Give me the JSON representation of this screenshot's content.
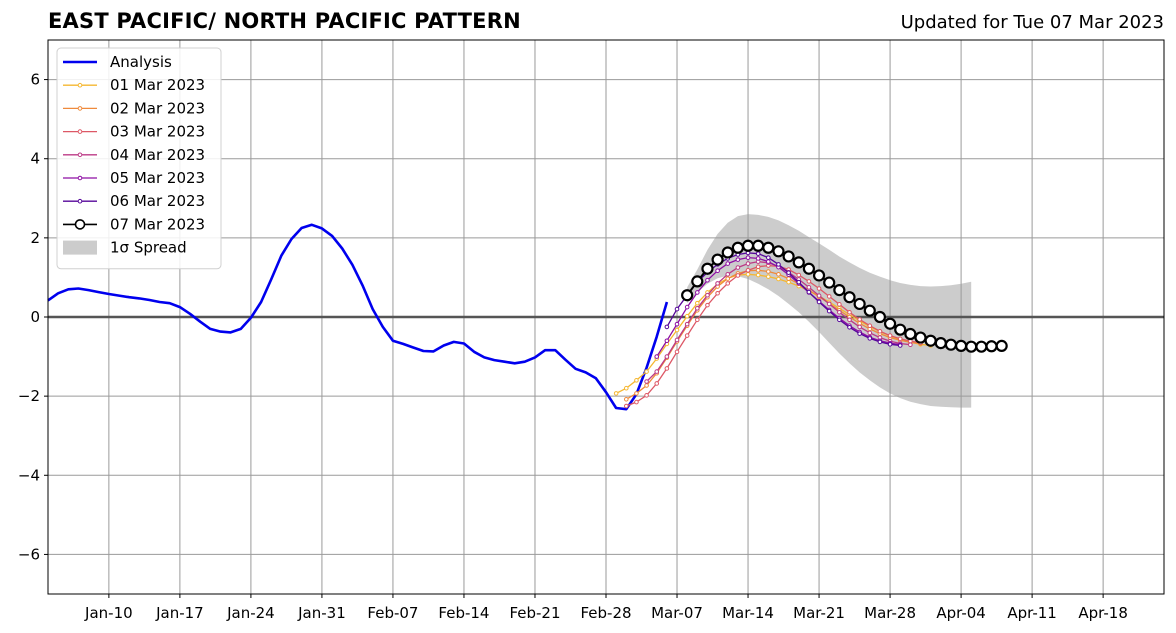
{
  "title": "EAST PACIFIC/ NORTH PACIFIC PATTERN",
  "updated": "Updated for Tue 07 Mar 2023",
  "colors": {
    "analysis": "#0000ee",
    "spread": "#cccccc",
    "grid": "#9a9a9a",
    "forecasts": [
      "#f5b731",
      "#ef8a3c",
      "#dd5866",
      "#bc3a86",
      "#8e0fa4",
      "#55069a",
      "#000000"
    ]
  },
  "chart_data": {
    "type": "line",
    "title": "EAST PACIFIC/ NORTH PACIFIC PATTERN",
    "xlim": [
      "2023-01-04",
      "2023-04-24"
    ],
    "ylim": [
      -7,
      7
    ],
    "xticks": [
      {
        "date": "2023-01-10",
        "label": "Jan-10"
      },
      {
        "date": "2023-01-17",
        "label": "Jan-17"
      },
      {
        "date": "2023-01-24",
        "label": "Jan-24"
      },
      {
        "date": "2023-01-31",
        "label": "Jan-31"
      },
      {
        "date": "2023-02-07",
        "label": "Feb-07"
      },
      {
        "date": "2023-02-14",
        "label": "Feb-14"
      },
      {
        "date": "2023-02-21",
        "label": "Feb-21"
      },
      {
        "date": "2023-02-28",
        "label": "Feb-28"
      },
      {
        "date": "2023-03-07",
        "label": "Mar-07"
      },
      {
        "date": "2023-03-14",
        "label": "Mar-14"
      },
      {
        "date": "2023-03-21",
        "label": "Mar-21"
      },
      {
        "date": "2023-03-28",
        "label": "Mar-28"
      },
      {
        "date": "2023-04-04",
        "label": "Apr-04"
      },
      {
        "date": "2023-04-11",
        "label": "Apr-11"
      },
      {
        "date": "2023-04-18",
        "label": "Apr-18"
      }
    ],
    "yticks": [
      {
        "value": -6,
        "label": "−6"
      },
      {
        "value": -4,
        "label": "−4"
      },
      {
        "value": -2,
        "label": "−2"
      },
      {
        "value": 0,
        "label": "0"
      },
      {
        "value": 2,
        "label": "2"
      },
      {
        "value": 4,
        "label": "4"
      },
      {
        "value": 6,
        "label": "6"
      }
    ],
    "grid": true,
    "legend_position": "upper-left",
    "analysis": {
      "name": "Analysis",
      "start": "2023-01-04",
      "values": [
        0.42,
        0.6,
        0.7,
        0.72,
        0.68,
        0.63,
        0.58,
        0.54,
        0.5,
        0.47,
        0.43,
        0.38,
        0.35,
        0.25,
        0.08,
        -0.12,
        -0.3,
        -0.37,
        -0.39,
        -0.3,
        -0.02,
        0.38,
        0.95,
        1.55,
        1.97,
        2.25,
        2.33,
        2.24,
        2.05,
        1.73,
        1.32,
        0.8,
        0.2,
        -0.25,
        -0.6,
        -0.68,
        -0.77,
        -0.86,
        -0.87,
        -0.72,
        -0.63,
        -0.67,
        -0.88,
        -1.02,
        -1.09,
        -1.13,
        -1.17,
        -1.13,
        -1.02,
        -0.84,
        -0.84,
        -1.08,
        -1.31,
        -1.4,
        -1.55,
        -1.9,
        -2.3,
        -2.33,
        -1.95,
        -1.28,
        -0.5,
        0.38
      ]
    },
    "forecasts": [
      {
        "name": "01 Mar 2023",
        "start": "2023-03-01",
        "values": [
          -1.93,
          -1.8,
          -1.6,
          -1.38,
          -1.05,
          -0.68,
          -0.33,
          0.02,
          0.35,
          0.62,
          0.83,
          0.98,
          1.06,
          1.08,
          1.06,
          1.02,
          0.96,
          0.88,
          0.78,
          0.66,
          0.53,
          0.38,
          0.22,
          0.06,
          -0.1,
          -0.24,
          -0.37,
          -0.48,
          -0.57,
          -0.64,
          -0.69,
          -0.72
        ]
      },
      {
        "name": "02 Mar 2023",
        "start": "2023-03-02",
        "values": [
          -2.08,
          -1.93,
          -1.73,
          -1.42,
          -1.03,
          -0.62,
          -0.22,
          0.17,
          0.5,
          0.77,
          0.97,
          1.1,
          1.17,
          1.18,
          1.15,
          1.08,
          0.97,
          0.84,
          0.68,
          0.51,
          0.34,
          0.17,
          0.0,
          -0.16,
          -0.3,
          -0.42,
          -0.52,
          -0.59,
          -0.64,
          -0.67
        ]
      },
      {
        "name": "03 Mar 2023",
        "start": "2023-03-02",
        "values": [
          -2.25,
          -2.15,
          -1.98,
          -1.68,
          -1.3,
          -0.88,
          -0.47,
          -0.07,
          0.3,
          0.6,
          0.85,
          1.05,
          1.18,
          1.27,
          1.3,
          1.28,
          1.2,
          1.06,
          0.9,
          0.72,
          0.52,
          0.32,
          0.12,
          -0.06,
          -0.22,
          -0.36,
          -0.47,
          -0.55,
          -0.61,
          -0.65
        ]
      },
      {
        "name": "04 Mar 2023",
        "start": "2023-03-04",
        "values": [
          -1.63,
          -1.38,
          -1.0,
          -0.58,
          -0.18,
          0.22,
          0.55,
          0.85,
          1.08,
          1.25,
          1.35,
          1.4,
          1.37,
          1.28,
          1.13,
          0.95,
          0.75,
          0.54,
          0.33,
          0.12,
          -0.07,
          -0.25,
          -0.4,
          -0.52,
          -0.61,
          -0.67,
          -0.7
        ]
      },
      {
        "name": "05 Mar 2023",
        "start": "2023-03-05",
        "values": [
          -1.0,
          -0.6,
          -0.18,
          0.25,
          0.62,
          0.93,
          1.17,
          1.35,
          1.45,
          1.5,
          1.48,
          1.4,
          1.26,
          1.07,
          0.85,
          0.62,
          0.4,
          0.18,
          -0.03,
          -0.22,
          -0.38,
          -0.51,
          -0.6,
          -0.66,
          -0.7
        ]
      },
      {
        "name": "06 Mar 2023",
        "start": "2023-03-06",
        "values": [
          -0.25,
          0.2,
          0.55,
          0.88,
          1.13,
          1.33,
          1.48,
          1.58,
          1.62,
          1.6,
          1.5,
          1.33,
          1.12,
          0.88,
          0.63,
          0.38,
          0.15,
          -0.07,
          -0.26,
          -0.42,
          -0.54,
          -0.63,
          -0.69,
          -0.72
        ]
      },
      {
        "name": "07 Mar 2023",
        "start": "2023-03-08",
        "values": [
          0.55,
          0.9,
          1.22,
          1.45,
          1.63,
          1.75,
          1.8,
          1.8,
          1.75,
          1.66,
          1.53,
          1.38,
          1.22,
          1.05,
          0.87,
          0.68,
          0.5,
          0.33,
          0.16,
          0.0,
          -0.17,
          -0.32,
          -0.43,
          -0.52,
          -0.6,
          -0.66,
          -0.7,
          -0.73,
          -0.75,
          -0.75,
          -0.74,
          -0.73
        ]
      }
    ],
    "spread": {
      "name": "1σ Spread",
      "start": "2023-03-08",
      "upper": [
        0.75,
        1.2,
        1.7,
        2.1,
        2.38,
        2.55,
        2.6,
        2.58,
        2.53,
        2.44,
        2.32,
        2.18,
        2.02,
        1.86,
        1.7,
        1.53,
        1.38,
        1.24,
        1.12,
        1.02,
        0.93,
        0.86,
        0.81,
        0.78,
        0.77,
        0.78,
        0.8,
        0.84,
        0.89
      ],
      "lower": [
        0.35,
        0.62,
        0.84,
        0.98,
        1.04,
        1.03,
        0.96,
        0.84,
        0.7,
        0.53,
        0.33,
        0.12,
        -0.12,
        -0.38,
        -0.65,
        -0.92,
        -1.17,
        -1.4,
        -1.6,
        -1.78,
        -1.93,
        -2.05,
        -2.14,
        -2.2,
        -2.25,
        -2.27,
        -2.28,
        -2.29,
        -2.29
      ]
    }
  }
}
